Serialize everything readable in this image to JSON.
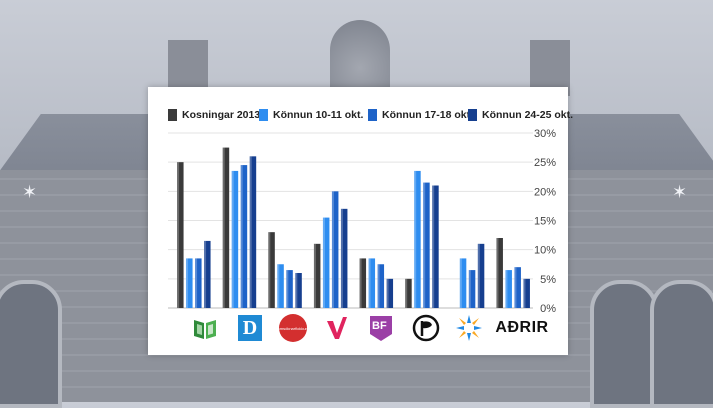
{
  "chart_data": {
    "type": "bar",
    "categories": [
      "Vinstri græn",
      "Sjálfstæðisflokkurinn",
      "Framsóknarflokkurinn",
      "Viðreisn",
      "Björt framtíð",
      "Píratar",
      "Samfylkingin",
      "AÐRIR"
    ],
    "series": [
      {
        "name": "Kosningar 2013",
        "color": "#3a3a3a",
        "values": [
          25,
          27.5,
          13,
          11,
          8.5,
          5,
          0,
          12
        ]
      },
      {
        "name": "Könnun 10-11 okt.",
        "color": "#2e8df0",
        "values": [
          8.5,
          23.5,
          7.5,
          15.5,
          8.5,
          23.5,
          8.5,
          6.5
        ]
      },
      {
        "name": "Könnun 17-18 okt.",
        "color": "#1e63c8",
        "values": [
          8.5,
          24.5,
          6.5,
          20,
          7.5,
          21.5,
          6.5,
          7
        ]
      },
      {
        "name": "Könnun 24-25 okt.",
        "color": "#163f8f",
        "values": [
          11.5,
          26,
          6,
          17,
          5,
          21,
          11,
          5
        ]
      }
    ],
    "ylim": [
      0,
      30
    ],
    "yticks": [
      "0%",
      "5%",
      "10%",
      "15%",
      "20%",
      "25%",
      "30%"
    ],
    "title": "",
    "xlabel": "",
    "ylabel": ""
  },
  "logos": {
    "category_labels": [
      "",
      "D",
      "Framsóknarflokkurinn",
      "V",
      "BF",
      "",
      "",
      "AÐRIR"
    ]
  },
  "icons": [
    "green-book-icon",
    "d-logo-icon",
    "red-circle-logo-icon",
    "v-logo-icon",
    "bf-logo-icon",
    "pirate-flag-icon",
    "sun-logo-icon",
    "adrir-text"
  ]
}
